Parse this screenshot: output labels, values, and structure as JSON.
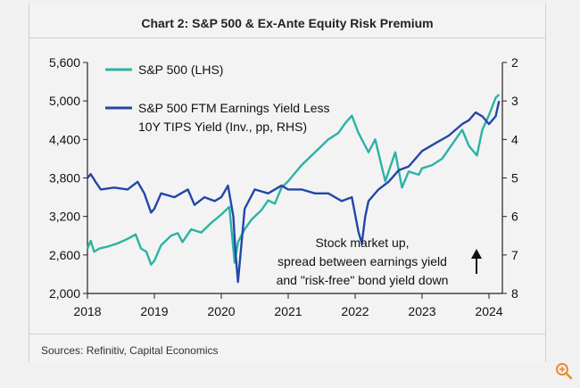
{
  "title": "Chart 2: S&P 500 & Ex-Ante Equity Risk Premium",
  "source": "Sources: Refinitiv, Capital Economics",
  "chart_data": {
    "type": "line",
    "x_range": [
      2018.0,
      2024.2
    ],
    "x_ticks": [
      "2018",
      "2019",
      "2020",
      "2021",
      "2022",
      "2023",
      "2024"
    ],
    "y_left": {
      "range": [
        2000,
        5600
      ],
      "ticks": [
        "2,000",
        "2,600",
        "3,200",
        "3,800",
        "4,400",
        "5,000",
        "5,600"
      ]
    },
    "y_right": {
      "range": [
        2,
        8
      ],
      "inverted": true,
      "ticks": [
        "2",
        "3",
        "4",
        "5",
        "6",
        "7",
        "8"
      ]
    },
    "legend": [
      "S&P 500 (LHS)",
      "S&P 500 FTM Earnings Yield Less",
      "10Y TIPS Yield (Inv., pp, RHS)"
    ],
    "annotation": [
      "Stock market up,",
      "spread between earnings yield",
      "and \"risk-free\" bond yield down"
    ],
    "series": [
      {
        "name": "S&P 500 (LHS)",
        "axis": "left",
        "color": "#2bb3a4",
        "x": [
          2018.0,
          2018.05,
          2018.1,
          2018.18,
          2018.3,
          2018.45,
          2018.6,
          2018.72,
          2018.8,
          2018.88,
          2018.95,
          2019.0,
          2019.1,
          2019.25,
          2019.35,
          2019.42,
          2019.55,
          2019.7,
          2019.85,
          2020.0,
          2020.12,
          2020.2,
          2020.25,
          2020.35,
          2020.45,
          2020.6,
          2020.7,
          2020.8,
          2020.9,
          2021.0,
          2021.2,
          2021.4,
          2021.6,
          2021.75,
          2021.85,
          2021.95,
          2022.05,
          2022.2,
          2022.3,
          2022.45,
          2022.6,
          2022.7,
          2022.8,
          2022.95,
          2023.0,
          2023.15,
          2023.3,
          2023.5,
          2023.6,
          2023.7,
          2023.82,
          2023.9,
          2024.0,
          2024.1,
          2024.15
        ],
        "values": [
          2700,
          2820,
          2650,
          2700,
          2730,
          2780,
          2850,
          2920,
          2700,
          2650,
          2450,
          2510,
          2750,
          2900,
          2940,
          2800,
          3000,
          2950,
          3100,
          3230,
          3350,
          2480,
          2800,
          3000,
          3150,
          3300,
          3450,
          3400,
          3650,
          3750,
          4000,
          4200,
          4400,
          4500,
          4650,
          4770,
          4500,
          4200,
          4400,
          3750,
          4200,
          3650,
          3900,
          3850,
          3950,
          4000,
          4100,
          4400,
          4550,
          4300,
          4150,
          4550,
          4780,
          5050,
          5100
        ]
      },
      {
        "name": "S&P 500 FTM Earnings Yield Less 10Y TIPS Yield (Inv., pp, RHS)",
        "axis": "right",
        "color": "#2347a8",
        "x": [
          2018.0,
          2018.05,
          2018.12,
          2018.2,
          2018.4,
          2018.6,
          2018.75,
          2018.85,
          2018.95,
          2019.0,
          2019.1,
          2019.3,
          2019.5,
          2019.6,
          2019.75,
          2019.9,
          2020.0,
          2020.1,
          2020.18,
          2020.21,
          2020.25,
          2020.35,
          2020.5,
          2020.7,
          2020.9,
          2021.0,
          2021.2,
          2021.4,
          2021.6,
          2021.8,
          2021.95,
          2022.05,
          2022.1,
          2022.15,
          2022.2,
          2022.35,
          2022.5,
          2022.65,
          2022.8,
          2022.95,
          2023.0,
          2023.2,
          2023.4,
          2023.6,
          2023.7,
          2023.8,
          2023.9,
          2024.0,
          2024.1,
          2024.15
        ],
        "values": [
          5.0,
          4.9,
          5.1,
          5.3,
          5.25,
          5.3,
          5.1,
          5.4,
          5.9,
          5.8,
          5.4,
          5.5,
          5.3,
          5.7,
          5.5,
          5.6,
          5.5,
          5.2,
          6.0,
          6.9,
          7.7,
          5.8,
          5.3,
          5.4,
          5.2,
          5.3,
          5.3,
          5.4,
          5.4,
          5.6,
          5.5,
          6.4,
          6.7,
          6.0,
          5.6,
          5.3,
          5.1,
          4.8,
          4.7,
          4.4,
          4.3,
          4.1,
          3.9,
          3.6,
          3.5,
          3.3,
          3.4,
          3.6,
          3.4,
          3.0
        ]
      }
    ]
  }
}
